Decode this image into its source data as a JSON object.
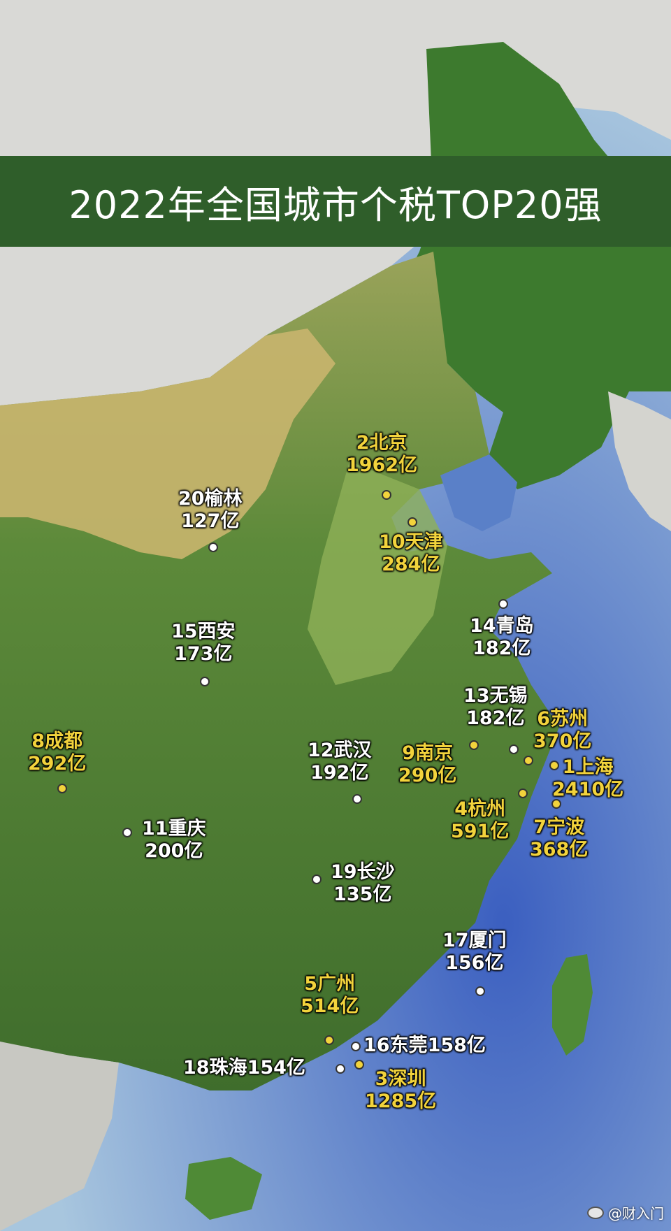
{
  "title": "2022年全国城市个税TOP20强",
  "watermark": "@财入门",
  "colors": {
    "title_band": "#2f5e2a",
    "yellow": "#f2d33c",
    "white": "#ffffff"
  },
  "cities": [
    {
      "id": "beijing",
      "line1": "2北京",
      "line2": "1962亿",
      "color": "yellow"
    },
    {
      "id": "yulin",
      "line1": "20榆林",
      "line2": "127亿",
      "color": "white"
    },
    {
      "id": "tianjin",
      "line1": "10天津",
      "line2": "284亿",
      "color": "yellow"
    },
    {
      "id": "qingdao",
      "line1": "14青岛",
      "line2": "182亿",
      "color": "white"
    },
    {
      "id": "xian",
      "line1": "15西安",
      "line2": "173亿",
      "color": "white"
    },
    {
      "id": "wuxi",
      "line1": "13无锡",
      "line2": "182亿",
      "color": "white"
    },
    {
      "id": "suzhou",
      "line1": "6苏州",
      "line2": "370亿",
      "color": "yellow"
    },
    {
      "id": "chengdu",
      "line1": "8成都",
      "line2": "292亿",
      "color": "yellow"
    },
    {
      "id": "wuhan",
      "line1": "12武汉",
      "line2": "192亿",
      "color": "white"
    },
    {
      "id": "nanjing",
      "line1": "9南京",
      "line2": "290亿",
      "color": "yellow"
    },
    {
      "id": "shanghai",
      "line1": "1上海",
      "line2": "2410亿",
      "color": "yellow"
    },
    {
      "id": "hangzhou",
      "line1": "4杭州",
      "line2": "591亿",
      "color": "yellow"
    },
    {
      "id": "ningbo",
      "line1": "7宁波",
      "line2": "368亿",
      "color": "yellow"
    },
    {
      "id": "chongqing",
      "line1": "11重庆",
      "line2": "200亿",
      "color": "white"
    },
    {
      "id": "changsha",
      "line1": "19长沙",
      "line2": "135亿",
      "color": "white"
    },
    {
      "id": "xiamen",
      "line1": "17厦门",
      "line2": "156亿",
      "color": "white"
    },
    {
      "id": "guangzhou",
      "line1": "5广州",
      "line2": "514亿",
      "color": "yellow"
    },
    {
      "id": "dongguan",
      "line1": "16东莞158亿",
      "line2": "",
      "color": "white"
    },
    {
      "id": "zhuhai",
      "line1": "18珠海154亿",
      "line2": "",
      "color": "white"
    },
    {
      "id": "shenzhen",
      "line1": "3深圳",
      "line2": "1285亿",
      "color": "yellow"
    }
  ]
}
